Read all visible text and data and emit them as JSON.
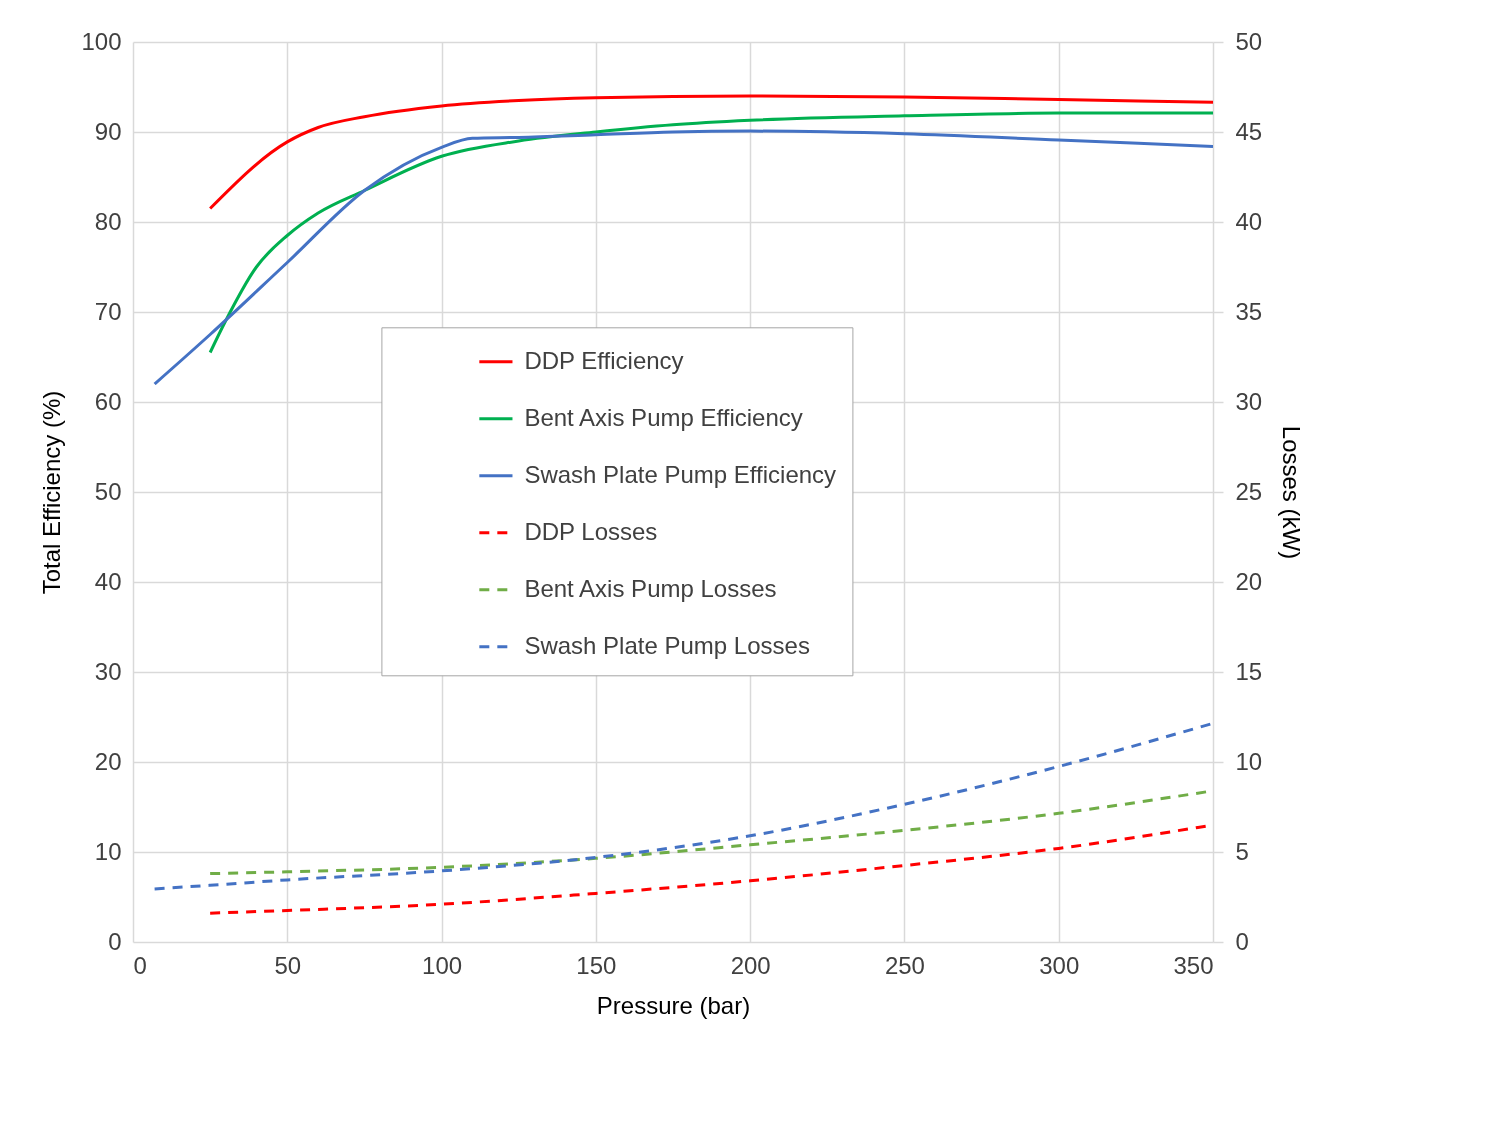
{
  "chart_data": {
    "type": "line",
    "xlabel": "Pressure (bar)",
    "ylabel": "Total Efficiency (%)",
    "y2label": "Losses (kW)",
    "xlim": [
      0,
      350
    ],
    "xticks": [
      0,
      50,
      100,
      150,
      200,
      250,
      300,
      350
    ],
    "ylim": [
      0,
      100
    ],
    "yticks": [
      0,
      10,
      20,
      30,
      40,
      50,
      60,
      70,
      80,
      90,
      100
    ],
    "y2lim": [
      0,
      50
    ],
    "y2ticks": [
      0,
      5,
      10,
      15,
      20,
      25,
      30,
      35,
      40,
      45,
      50
    ],
    "grid": true,
    "legend": "center",
    "marker": "none",
    "series": [
      {
        "name": "DDP Efficiency",
        "color": "#ff0000",
        "line_style": "solid",
        "x": [
          25,
          50,
          60,
          75,
          100,
          125,
          150,
          200,
          250,
          300,
          350
        ],
        "values": [
          81.5,
          88.9,
          90.5,
          91.7,
          92.9,
          93.5,
          93.8,
          94.0,
          93.9,
          93.6,
          93.3
        ]
      },
      {
        "name": "Bent Axis Pump Efficiency",
        "color": "#00b050",
        "line_style": "solid",
        "x": [
          25,
          30,
          40,
          50,
          60,
          75,
          100,
          125,
          150,
          175,
          200,
          250,
          300,
          350
        ],
        "values": [
          65.5,
          69,
          75,
          78.5,
          81,
          83.5,
          87.3,
          89,
          90,
          90.8,
          91.3,
          91.8,
          92.1,
          92.1
        ]
      },
      {
        "name": "Swash Plate Pump Efficiency",
        "color": "#4472c4",
        "line_style": "solid",
        "x": [
          7,
          25,
          50,
          75,
          100,
          110,
          125,
          150,
          175,
          200,
          250,
          300,
          350
        ],
        "values": [
          62,
          67.5,
          75.5,
          83.5,
          88.3,
          89.3,
          89.4,
          89.7,
          90.0,
          90.1,
          89.8,
          89.1,
          88.4
        ]
      },
      {
        "name": "DDP Losses",
        "color": "#ff0000",
        "line_style": "dashed",
        "axis": "y2",
        "x": [
          25,
          50,
          100,
          150,
          200,
          250,
          300,
          350
        ],
        "values": [
          1.6,
          1.75,
          2.1,
          2.7,
          3.4,
          4.25,
          5.2,
          6.5
        ]
      },
      {
        "name": "Bent Axis Pump Losses",
        "color": "#70ad47",
        "line_style": "dashed",
        "axis": "y2",
        "x": [
          25,
          50,
          100,
          150,
          200,
          250,
          300,
          350
        ],
        "values": [
          3.8,
          3.9,
          4.15,
          4.65,
          5.4,
          6.2,
          7.15,
          8.4
        ]
      },
      {
        "name": "Swash Plate Pump Losses",
        "color": "#4472c4",
        "line_style": "dashed",
        "axis": "y2",
        "x": [
          7,
          25,
          50,
          100,
          150,
          200,
          250,
          300,
          350
        ],
        "values": [
          2.95,
          3.15,
          3.45,
          3.95,
          4.7,
          5.9,
          7.65,
          9.75,
          12.15
        ]
      }
    ]
  }
}
